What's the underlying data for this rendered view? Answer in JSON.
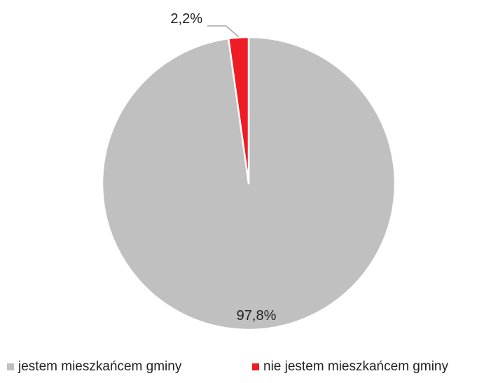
{
  "chart_data": {
    "type": "pie",
    "title": "",
    "start_angle_deg": 0,
    "direction": "counterclockwise",
    "slices": [
      {
        "name": "jestem mieszkańcem gminy",
        "value": 97.8,
        "label": "97,8%",
        "color": "#c0c0c0"
      },
      {
        "name": "nie jestem mieszkańcem gminy",
        "value": 2.2,
        "label": "2,2%",
        "color": "#ee1c25"
      }
    ],
    "legend": {
      "position": "bottom"
    },
    "border_color": "#ffffff",
    "leader_line_color": "#a6a6a6"
  }
}
